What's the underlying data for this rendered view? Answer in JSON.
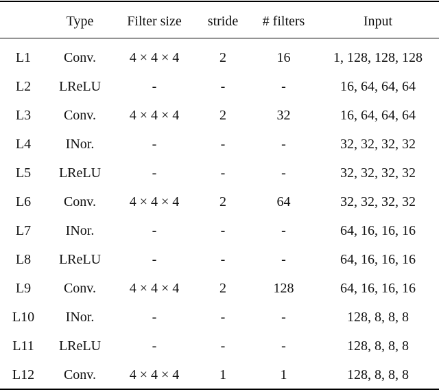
{
  "table": {
    "header": [
      "Type",
      "Filter size",
      "stride",
      "# filters",
      "Input"
    ],
    "rows": [
      [
        "L1",
        "Conv.",
        "4 × 4 × 4",
        "2",
        "16",
        "1, 128, 128, 128"
      ],
      [
        "L2",
        "LReLU",
        "-",
        "-",
        "-",
        "16, 64, 64, 64"
      ],
      [
        "L3",
        "Conv.",
        "4 × 4 × 4",
        "2",
        "32",
        "16, 64, 64, 64"
      ],
      [
        "L4",
        "INor.",
        "-",
        "-",
        "-",
        "32, 32, 32, 32"
      ],
      [
        "L5",
        "LReLU",
        "-",
        "-",
        "-",
        "32, 32, 32, 32"
      ],
      [
        "L6",
        "Conv.",
        "4 × 4 × 4",
        "2",
        "64",
        "32, 32, 32, 32"
      ],
      [
        "L7",
        "INor.",
        "-",
        "-",
        "-",
        "64, 16, 16, 16"
      ],
      [
        "L8",
        "LReLU",
        "-",
        "-",
        "-",
        "64, 16, 16, 16"
      ],
      [
        "L9",
        "Conv.",
        "4 × 4 × 4",
        "2",
        "128",
        "64, 16, 16, 16"
      ],
      [
        "L10",
        "INor.",
        "-",
        "-",
        "-",
        "128, 8, 8, 8"
      ],
      [
        "L11",
        "LReLU",
        "-",
        "-",
        "-",
        "128, 8, 8, 8"
      ],
      [
        "L12",
        "Conv.",
        "4 × 4 × 4",
        "1",
        "1",
        "128, 8, 8, 8"
      ]
    ]
  }
}
